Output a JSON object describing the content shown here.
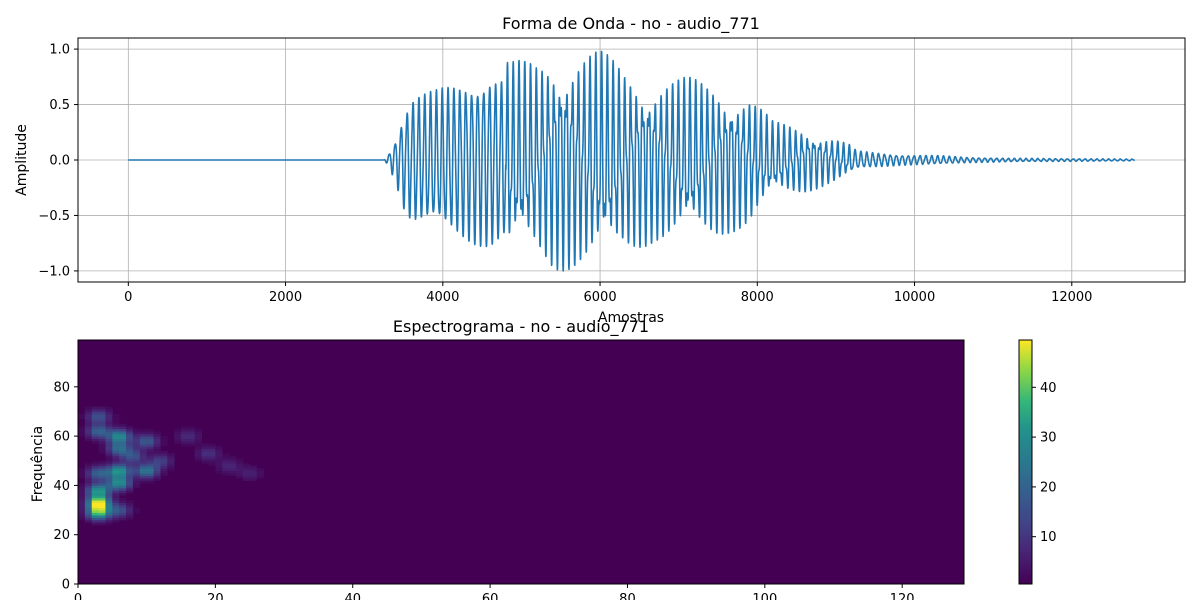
{
  "chart_data": [
    {
      "type": "line",
      "title": "Forma de Onda - no - audio_771",
      "xlabel": "Amostras",
      "ylabel": "Amplitude",
      "xlim": [
        -640,
        13440
      ],
      "ylim": [
        -1.1,
        1.1
      ],
      "grid": true,
      "color": "#1f77b4",
      "x_ticks": [
        0,
        2000,
        4000,
        6000,
        8000,
        10000,
        12000
      ],
      "x_tick_labels": [
        "0",
        "2000",
        "4000",
        "6000",
        "8000",
        "10000",
        "12000"
      ],
      "y_ticks": [
        -1.0,
        -0.5,
        0.0,
        0.5,
        1.0
      ],
      "y_tick_labels": [
        "−1.0",
        "−0.5",
        "0.0",
        "0.5",
        "1.0"
      ],
      "series": [
        {
          "x_start": 0,
          "x_end": 12800,
          "envelope": [
            [
              0,
              0
            ],
            [
              3250,
              0
            ],
            [
              3300,
              0.05
            ],
            [
              3400,
              0.25
            ],
            [
              3500,
              0.55
            ],
            [
              3600,
              0.72
            ],
            [
              3700,
              0.75
            ],
            [
              3900,
              0.78
            ],
            [
              4100,
              0.85
            ],
            [
              4400,
              0.95
            ],
            [
              4600,
              1.0
            ],
            [
              4900,
              0.9
            ],
            [
              5200,
              0.9
            ],
            [
              5400,
              1.0
            ],
            [
              5800,
              1.0
            ],
            [
              6000,
              1.0
            ],
            [
              6300,
              0.85
            ],
            [
              6700,
              0.75
            ],
            [
              7100,
              0.75
            ],
            [
              7500,
              0.7
            ],
            [
              7900,
              0.6
            ],
            [
              8200,
              0.35
            ],
            [
              8600,
              0.3
            ],
            [
              9000,
              0.2
            ],
            [
              9300,
              0.1
            ],
            [
              9800,
              0.06
            ],
            [
              10300,
              0.05
            ],
            [
              10700,
              0.03
            ],
            [
              11200,
              0.02
            ],
            [
              12000,
              0.015
            ],
            [
              12800,
              0.01
            ]
          ]
        }
      ]
    },
    {
      "type": "heatmap",
      "title": "Espectrograma - no - audio_771",
      "xlabel": "",
      "ylabel": "Frequência",
      "xlim": [
        0,
        129
      ],
      "ylim": [
        0,
        99
      ],
      "colormap": "viridis",
      "colorbar_range": [
        0.5,
        49.5
      ],
      "colorbar_ticks": [
        10,
        20,
        30,
        40
      ],
      "colorbar_tick_labels": [
        "10",
        "20",
        "30",
        "40"
      ],
      "x_ticks": [
        0,
        20,
        40,
        60,
        80,
        100,
        120
      ],
      "x_tick_labels": [
        "0",
        "20",
        "40",
        "60",
        "80",
        "100",
        "120"
      ],
      "y_ticks": [
        0,
        20,
        40,
        60,
        80
      ],
      "y_tick_labels": [
        "0",
        "20",
        "40",
        "60",
        "80"
      ],
      "hotspots": [
        {
          "t": 3,
          "f": 33,
          "value": 48
        },
        {
          "t": 3,
          "f": 29,
          "value": 38
        },
        {
          "t": 3,
          "f": 38,
          "value": 32
        },
        {
          "t": 3,
          "f": 45,
          "value": 20
        },
        {
          "t": 3,
          "f": 62,
          "value": 20
        },
        {
          "t": 3,
          "f": 68,
          "value": 16
        },
        {
          "t": 6,
          "f": 60,
          "value": 30
        },
        {
          "t": 6,
          "f": 55,
          "value": 22
        },
        {
          "t": 6,
          "f": 46,
          "value": 32
        },
        {
          "t": 6,
          "f": 41,
          "value": 30
        },
        {
          "t": 6,
          "f": 30,
          "value": 16
        },
        {
          "t": 8,
          "f": 52,
          "value": 16
        },
        {
          "t": 10,
          "f": 58,
          "value": 18
        },
        {
          "t": 10,
          "f": 46,
          "value": 25
        },
        {
          "t": 12,
          "f": 50,
          "value": 12
        },
        {
          "t": 16,
          "f": 60,
          "value": 8
        },
        {
          "t": 19,
          "f": 53,
          "value": 9
        },
        {
          "t": 22,
          "f": 48,
          "value": 7
        },
        {
          "t": 25,
          "f": 45,
          "value": 6
        }
      ]
    }
  ]
}
